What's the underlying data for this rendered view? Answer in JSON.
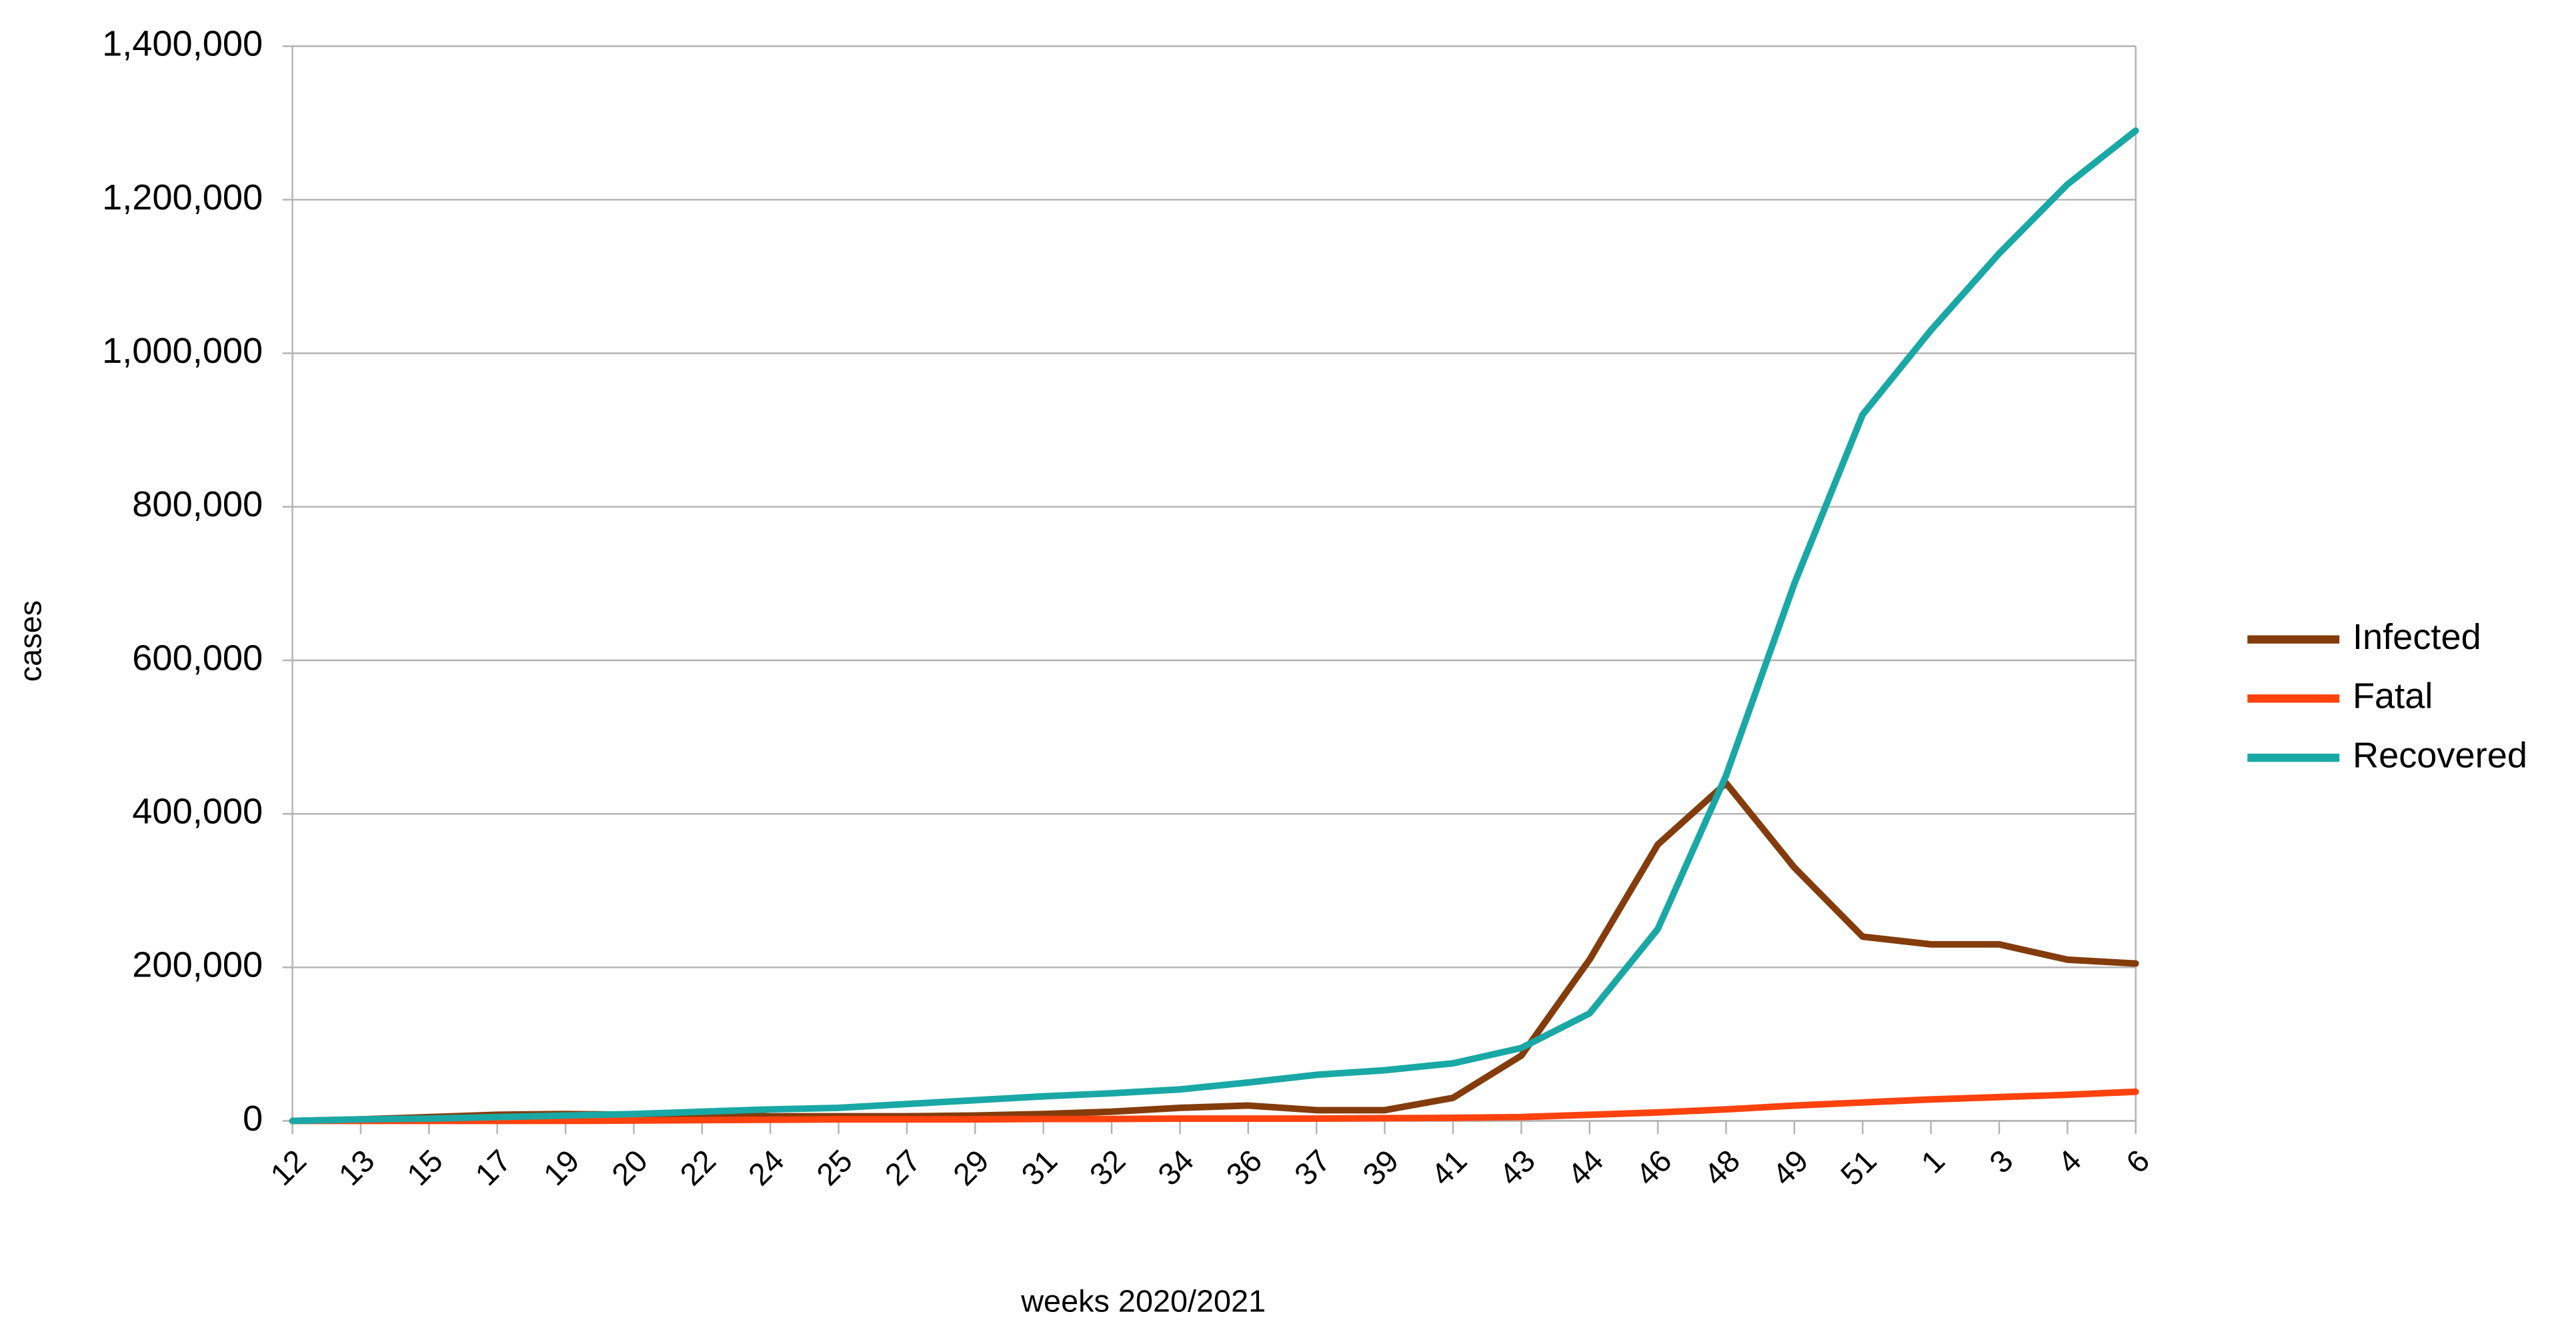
{
  "chart_data": {
    "type": "line",
    "x_label": "weeks 2020/2021",
    "y_label": "cases",
    "categories": [
      "12",
      "13",
      "15",
      "17",
      "19",
      "20",
      "22",
      "24",
      "25",
      "27",
      "29",
      "31",
      "32",
      "34",
      "36",
      "37",
      "39",
      "41",
      "43",
      "44",
      "46",
      "48",
      "49",
      "51",
      "1",
      "3",
      "4",
      "6"
    ],
    "series": [
      {
        "name": "Infected",
        "color": "#843c0c",
        "values": [
          0,
          2000,
          5000,
          8000,
          9000,
          8000,
          7000,
          6000,
          6000,
          6000,
          7000,
          9000,
          12000,
          17000,
          20000,
          14000,
          14000,
          30000,
          85000,
          210000,
          360000,
          440000,
          330000,
          240000,
          230000,
          230000,
          210000,
          205000
        ]
      },
      {
        "name": "Fatal",
        "color": "#ff420e",
        "values": [
          0,
          0,
          0,
          0,
          0,
          500,
          1000,
          1500,
          2000,
          2000,
          2000,
          2500,
          2500,
          3000,
          3000,
          3000,
          3500,
          4000,
          5000,
          8000,
          11000,
          15000,
          20000,
          24000,
          28000,
          31000,
          34000,
          38000
        ]
      },
      {
        "name": "Recovered",
        "color": "#19a8a5",
        "values": [
          0,
          2000,
          3000,
          5000,
          7000,
          9000,
          12000,
          15000,
          17000,
          22000,
          27000,
          32000,
          36000,
          41000,
          50000,
          60000,
          66000,
          75000,
          95000,
          140000,
          250000,
          450000,
          700000,
          920000,
          1030000,
          1130000,
          1220000,
          1290000
        ]
      }
    ],
    "ylim": [
      0,
      1400000
    ],
    "yticks": [
      0,
      {
        "value": 200000,
        "label": "200,000"
      },
      {
        "value": 400000,
        "label": "400,000"
      },
      {
        "value": 600000,
        "label": "600,000"
      },
      {
        "value": 800000,
        "label": "800,000"
      },
      {
        "value": 1000000,
        "label": "1,000,000"
      },
      {
        "value": 1200000,
        "label": "1,200,000"
      },
      {
        "value": 1400000,
        "label": "1,400,000"
      }
    ],
    "grid": true,
    "legend": "right"
  }
}
